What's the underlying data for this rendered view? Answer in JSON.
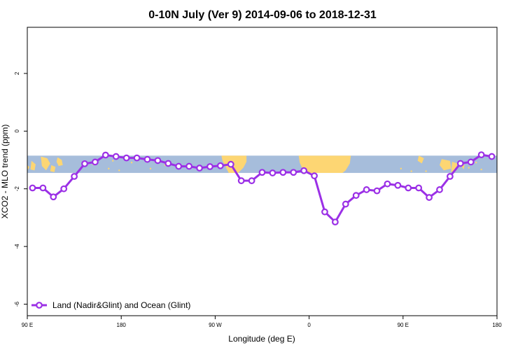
{
  "chart_data": {
    "type": "line",
    "title": "0-10N July (Ver 9)   2014-09-06 to 2018-12-31",
    "xlabel": "Longitude (deg E)",
    "ylabel": "XCO2 - MLO trend (ppm)",
    "x_tick_labels": [
      "90 E",
      "180",
      "90 W",
      "0",
      "90 E",
      "180"
    ],
    "x_tick_positions": [
      90,
      180,
      270,
      360,
      450,
      540
    ],
    "xlim": [
      90,
      540
    ],
    "y_ticks": [
      2,
      0,
      -2,
      -4,
      -6
    ],
    "ylim": [
      -6.4,
      3.6
    ],
    "grid": false,
    "legend_position": "bottom-left",
    "band": {
      "y_top": -0.85,
      "y_bottom": -1.45,
      "ocean_color": "#a6bddb",
      "land_color": "#fdd673"
    },
    "series": [
      {
        "name": "Land (Nadir&Glint) and Ocean (Glint)",
        "color": "#9b30e6",
        "x": [
          95,
          105,
          115,
          125,
          135,
          145,
          155,
          165,
          175,
          185,
          195,
          205,
          215,
          225,
          235,
          245,
          255,
          265,
          275,
          285,
          295,
          305,
          315,
          325,
          335,
          345,
          355,
          365,
          375,
          385,
          395,
          405,
          415,
          425,
          435,
          445,
          455,
          465,
          475,
          485,
          495,
          505,
          515,
          525,
          535
        ],
        "y": [
          -1.97,
          -1.97,
          -2.28,
          -2.0,
          -1.57,
          -1.13,
          -1.07,
          -0.83,
          -0.88,
          -0.93,
          -0.93,
          -0.98,
          -1.02,
          -1.12,
          -1.22,
          -1.22,
          -1.28,
          -1.23,
          -1.2,
          -1.15,
          -1.72,
          -1.72,
          -1.43,
          -1.45,
          -1.43,
          -1.43,
          -1.37,
          -1.55,
          -2.8,
          -3.15,
          -2.53,
          -2.23,
          -2.03,
          -2.07,
          -1.83,
          -1.88,
          -1.97,
          -1.97,
          -2.3,
          -2.03,
          -1.57,
          -1.12,
          -1.07,
          -0.82,
          -0.88
        ]
      }
    ]
  }
}
